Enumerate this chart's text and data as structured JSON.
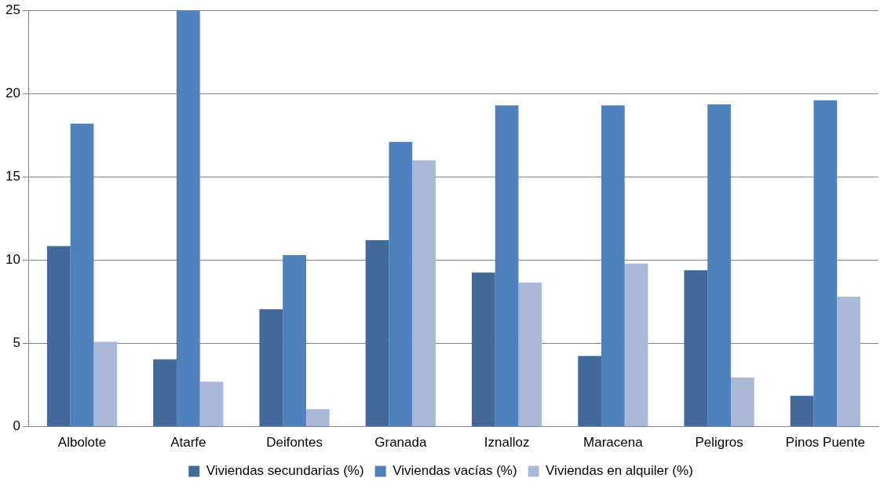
{
  "chart_data": {
    "type": "bar",
    "categories": [
      "Albolote",
      "Atarfe",
      "Deifontes",
      "Granada",
      "Iznalloz",
      "Maracena",
      "Peligros",
      "Pinos Puente"
    ],
    "series": [
      {
        "name": "Viviendas secundarias (%)",
        "color": "#416a9b",
        "values": [
          10.85,
          4.05,
          7.05,
          11.2,
          9.25,
          4.25,
          9.4,
          1.85
        ]
      },
      {
        "name": "Viviendas vacías (%)",
        "color": "#4f81bd",
        "values": [
          18.2,
          25,
          10.3,
          17.1,
          19.3,
          19.3,
          19.35,
          19.6
        ]
      },
      {
        "name": "Viviendas en alquiler (%)",
        "color": "#aab9d7",
        "values": [
          5.1,
          2.7,
          1.05,
          16.0,
          8.65,
          9.8,
          2.95,
          7.8
        ]
      }
    ],
    "ylim": [
      0,
      25
    ],
    "yticks": [
      0,
      5,
      10,
      15,
      20,
      25
    ],
    "grid": "y",
    "legend": "bottom"
  }
}
